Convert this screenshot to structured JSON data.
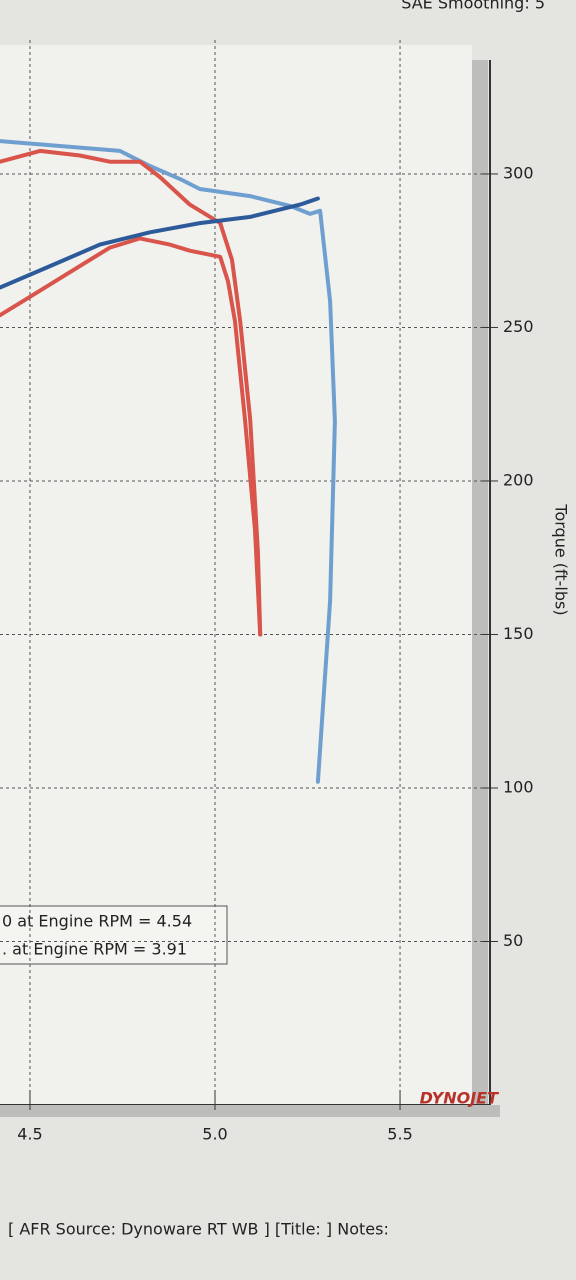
{
  "chart_data": {
    "type": "line",
    "header": "SAE Smoothing: 5",
    "y_label": "Torque (ft-lbs)",
    "logo": "DYNOJET",
    "footer": "[ AFR Source: Dynoware RT WB ] [Title: ]  Notes:",
    "annotations": [
      "0 at Engine RPM = 4.54",
      ". at Engine RPM = 3.91"
    ],
    "xlim": [
      4.419,
      5.735
    ],
    "ylim": [
      0,
      342
    ],
    "xticks": [
      4.5,
      {
        "value": 5.0,
        "label": "5.0"
      },
      5.5
    ],
    "yticks": [
      50,
      100,
      150,
      200,
      250,
      300
    ],
    "grid": true,
    "series": [
      {
        "color": "#6f9fd0",
        "x": [
          4.419,
          4.581,
          4.743,
          4.824,
          4.905,
          4.959,
          5.095,
          5.203,
          5.257,
          5.284,
          5.311,
          5.324,
          5.311,
          5.278
        ],
        "values": [
          310.7,
          309.1,
          307.5,
          302.6,
          298.4,
          295.1,
          292.8,
          289.6,
          287,
          288,
          258.6,
          219.5,
          160.9,
          102
        ]
      },
      {
        "color": "#d9544a",
        "x": [
          4.419,
          4.527,
          4.635,
          4.716,
          4.797,
          4.851,
          4.932,
          5.014,
          5.046,
          5.068,
          5.095,
          5.116,
          5.122
        ],
        "values": [
          304,
          307.5,
          306,
          304,
          304,
          299,
          290,
          284,
          272,
          252,
          220,
          177,
          150
        ]
      },
      {
        "color": "#d9544a",
        "x": [
          4.419,
          4.5,
          4.608,
          4.716,
          4.797,
          4.878,
          4.932,
          5.014,
          5.035,
          5.054,
          5.081,
          5.108,
          5.122
        ],
        "values": [
          254,
          260,
          268,
          276,
          279,
          277,
          275,
          273,
          265,
          252,
          220,
          184,
          150
        ]
      },
      {
        "color": "#2d5b9a",
        "x": [
          4.419,
          4.554,
          4.689,
          4.824,
          4.959,
          5.095,
          5.23,
          5.278
        ],
        "values": [
          263,
          270,
          277,
          281,
          284,
          286,
          290,
          292
        ]
      }
    ]
  }
}
